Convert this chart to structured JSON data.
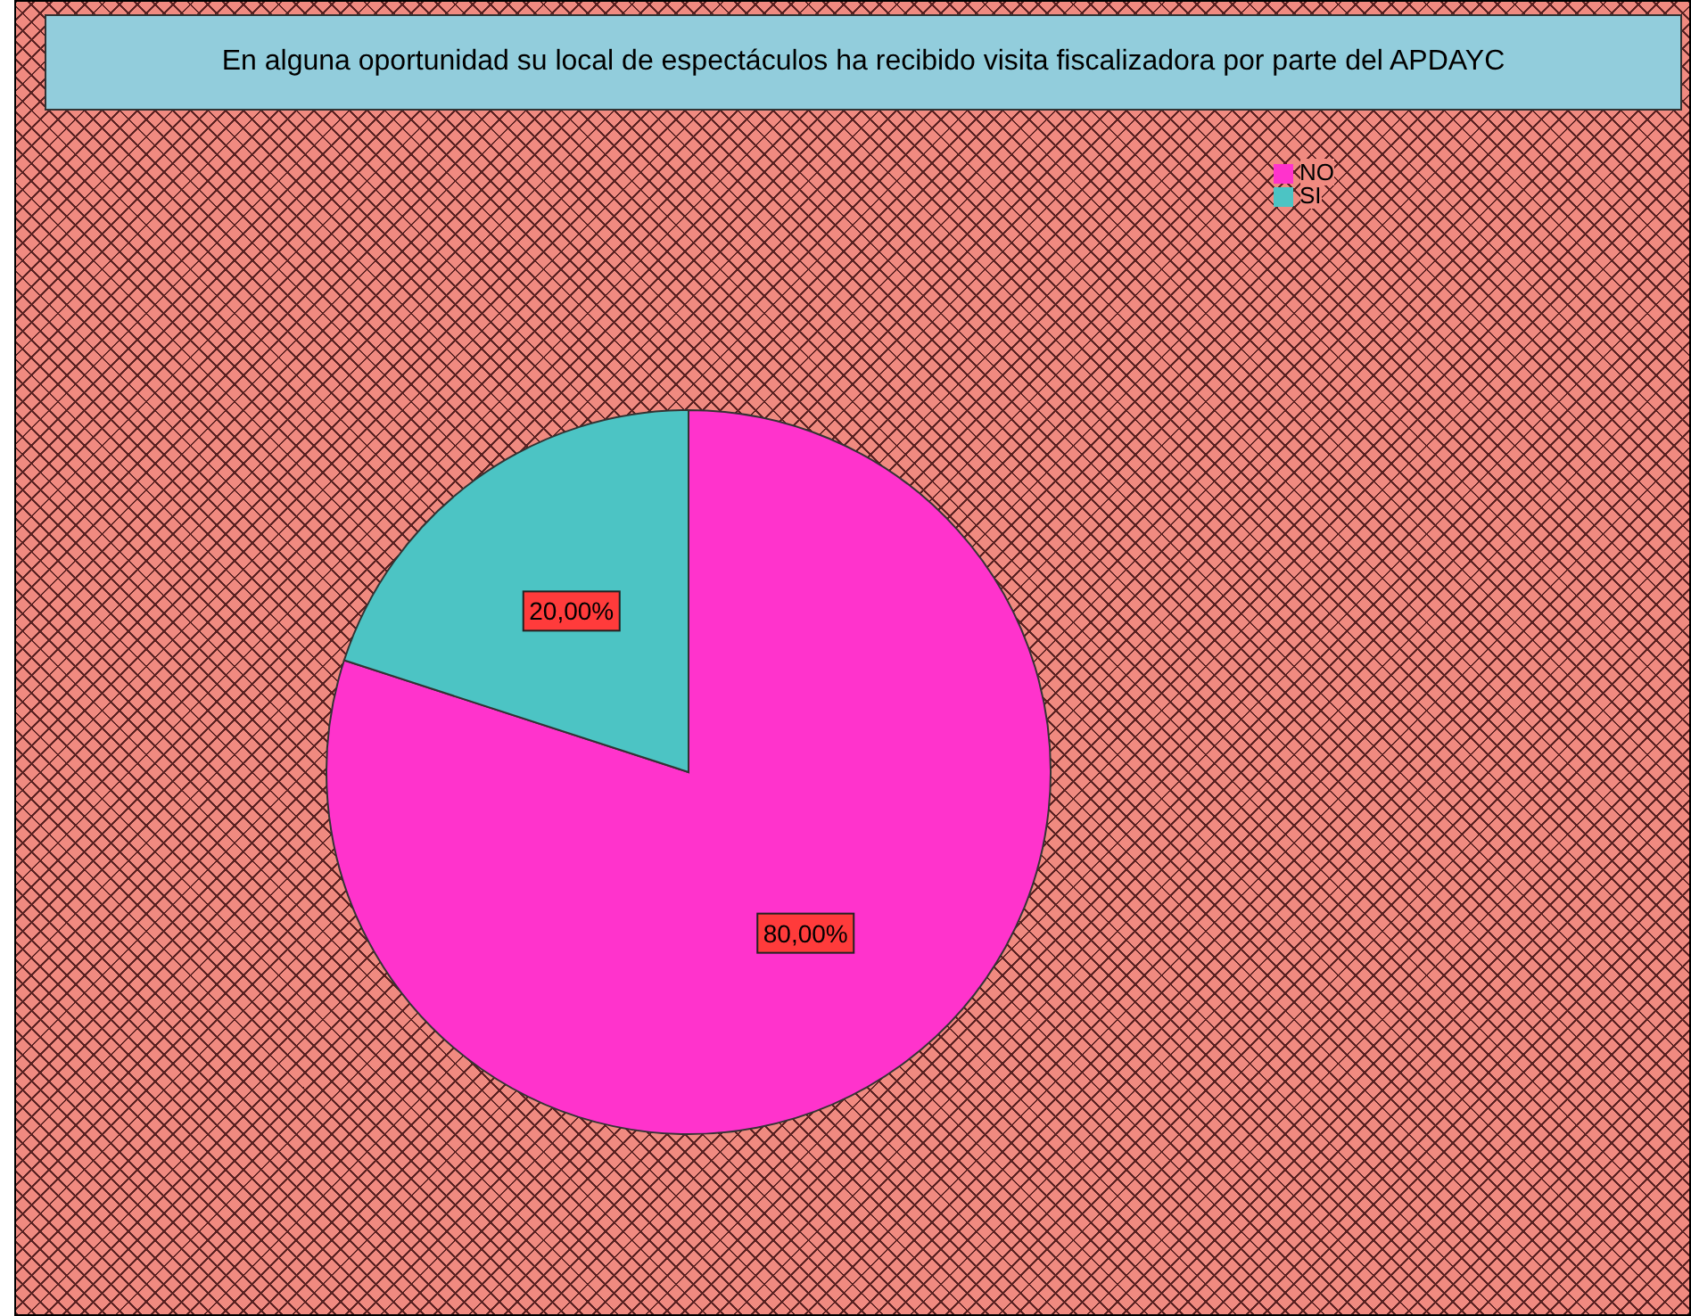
{
  "chart_data": {
    "type": "pie",
    "title": "En alguna oportunidad su local de espectáculos ha recibido visita fiscalizadora por parte del APDAYC",
    "categories": [
      "NO",
      "SI"
    ],
    "values": [
      80,
      20
    ],
    "colors": [
      "#ff33cc",
      "#4cc4c4"
    ],
    "value_labels": [
      "80,00%",
      "20,00%"
    ],
    "legend": "top right"
  }
}
